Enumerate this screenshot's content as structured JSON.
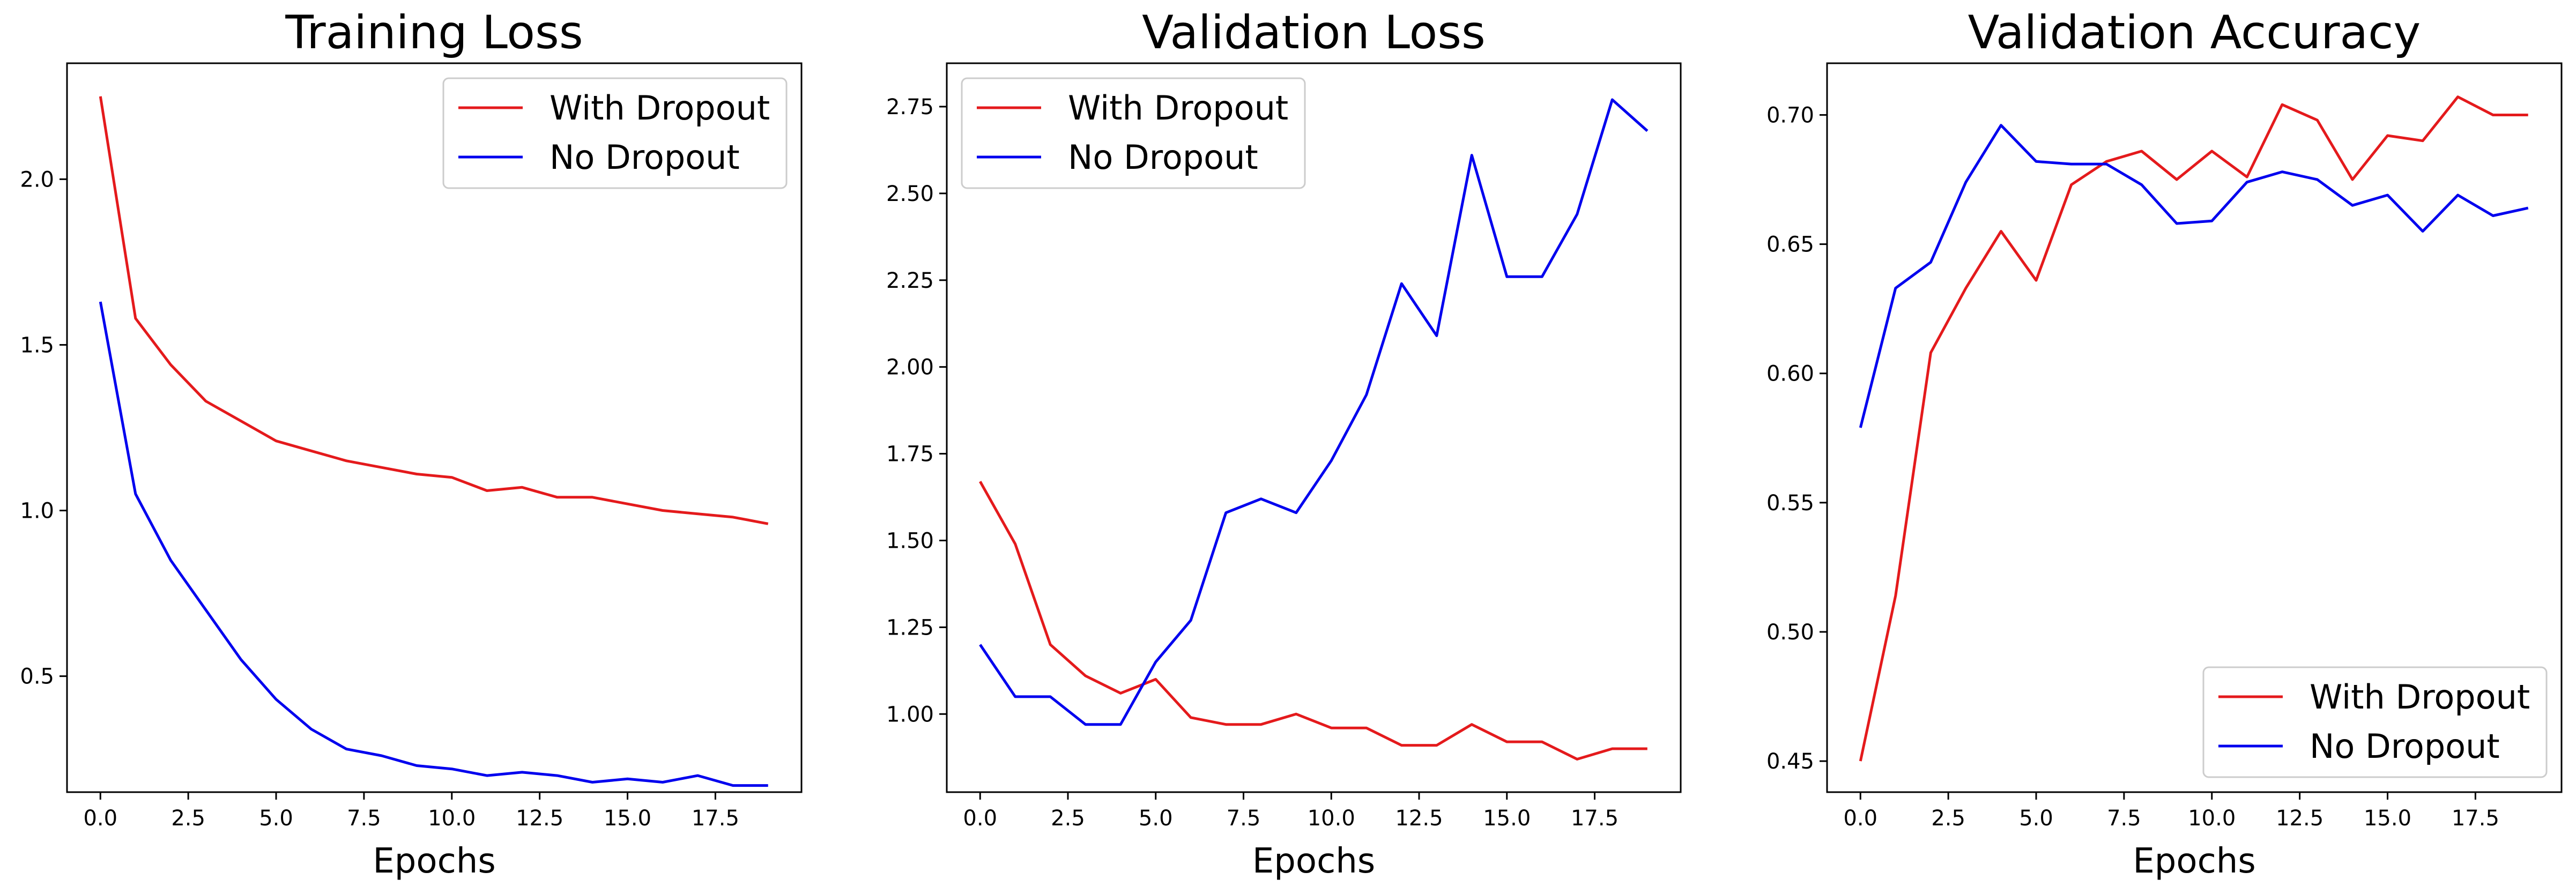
{
  "chart_data": [
    {
      "type": "line",
      "title": "Training Loss",
      "xlabel": "Epochs",
      "ylabel": "",
      "xlim": [
        -0.95,
        19.95
      ],
      "ylim": [
        0.15,
        2.35
      ],
      "xticks": [
        "0.0",
        "2.5",
        "5.0",
        "7.5",
        "10.0",
        "12.5",
        "15.0",
        "17.5"
      ],
      "yticks": [
        "0.5",
        "1.0",
        "1.5",
        "2.0"
      ],
      "legend": "upper right",
      "grid": false,
      "x": [
        0,
        1,
        2,
        3,
        4,
        5,
        6,
        7,
        8,
        9,
        10,
        11,
        12,
        13,
        14,
        15,
        16,
        17,
        18,
        19
      ],
      "series": [
        {
          "name": "With Dropout",
          "color": "#e41a1c",
          "values": [
            2.25,
            1.58,
            1.44,
            1.33,
            1.27,
            1.21,
            1.18,
            1.15,
            1.13,
            1.11,
            1.1,
            1.06,
            1.07,
            1.04,
            1.04,
            1.02,
            1.0,
            0.99,
            0.98,
            0.96
          ]
        },
        {
          "name": "No Dropout",
          "color": "#0000ee",
          "values": [
            1.63,
            1.05,
            0.85,
            0.7,
            0.55,
            0.43,
            0.34,
            0.28,
            0.26,
            0.23,
            0.22,
            0.2,
            0.21,
            0.2,
            0.18,
            0.19,
            0.18,
            0.2,
            0.17,
            0.17
          ]
        }
      ]
    },
    {
      "type": "line",
      "title": "Validation Loss",
      "xlabel": "Epochs",
      "ylabel": "",
      "xlim": [
        -0.95,
        19.95
      ],
      "ylim": [
        0.775,
        2.875
      ],
      "xticks": [
        "0.0",
        "2.5",
        "5.0",
        "7.5",
        "10.0",
        "12.5",
        "15.0",
        "17.5"
      ],
      "yticks": [
        "1.00",
        "1.25",
        "1.50",
        "1.75",
        "2.00",
        "2.25",
        "2.50",
        "2.75"
      ],
      "legend": "upper left",
      "grid": false,
      "x": [
        0,
        1,
        2,
        3,
        4,
        5,
        6,
        7,
        8,
        9,
        10,
        11,
        12,
        13,
        14,
        15,
        16,
        17,
        18,
        19
      ],
      "series": [
        {
          "name": "With Dropout",
          "color": "#e41a1c",
          "values": [
            1.67,
            1.49,
            1.2,
            1.11,
            1.06,
            1.1,
            0.99,
            0.97,
            0.97,
            1.0,
            0.96,
            0.96,
            0.91,
            0.91,
            0.97,
            0.92,
            0.92,
            0.87,
            0.9,
            0.9
          ]
        },
        {
          "name": "No Dropout",
          "color": "#0000ee",
          "values": [
            1.2,
            1.05,
            1.05,
            0.97,
            0.97,
            1.15,
            1.27,
            1.58,
            1.62,
            1.58,
            1.73,
            1.92,
            2.24,
            2.09,
            2.61,
            2.26,
            2.26,
            2.44,
            2.77,
            2.68
          ]
        }
      ]
    },
    {
      "type": "line",
      "title": "Validation Accuracy",
      "xlabel": "Epochs",
      "ylabel": "",
      "xlim": [
        -0.95,
        19.95
      ],
      "ylim": [
        0.438,
        0.72
      ],
      "xticks": [
        "0.0",
        "2.5",
        "5.0",
        "7.5",
        "10.0",
        "12.5",
        "15.0",
        "17.5"
      ],
      "yticks": [
        "0.45",
        "0.50",
        "0.55",
        "0.60",
        "0.65",
        "0.70"
      ],
      "legend": "lower right",
      "grid": false,
      "x": [
        0,
        1,
        2,
        3,
        4,
        5,
        6,
        7,
        8,
        9,
        10,
        11,
        12,
        13,
        14,
        15,
        16,
        17,
        18,
        19
      ],
      "series": [
        {
          "name": "With Dropout",
          "color": "#e41a1c",
          "values": [
            0.45,
            0.514,
            0.608,
            0.633,
            0.655,
            0.636,
            0.673,
            0.682,
            0.686,
            0.675,
            0.686,
            0.676,
            0.704,
            0.698,
            0.675,
            0.692,
            0.69,
            0.707,
            0.7,
            0.7
          ]
        },
        {
          "name": "No Dropout",
          "color": "#0000ee",
          "values": [
            0.579,
            0.633,
            0.643,
            0.674,
            0.696,
            0.682,
            0.681,
            0.681,
            0.673,
            0.658,
            0.659,
            0.674,
            0.678,
            0.675,
            0.665,
            0.669,
            0.655,
            0.669,
            0.661,
            0.664
          ]
        }
      ]
    }
  ]
}
